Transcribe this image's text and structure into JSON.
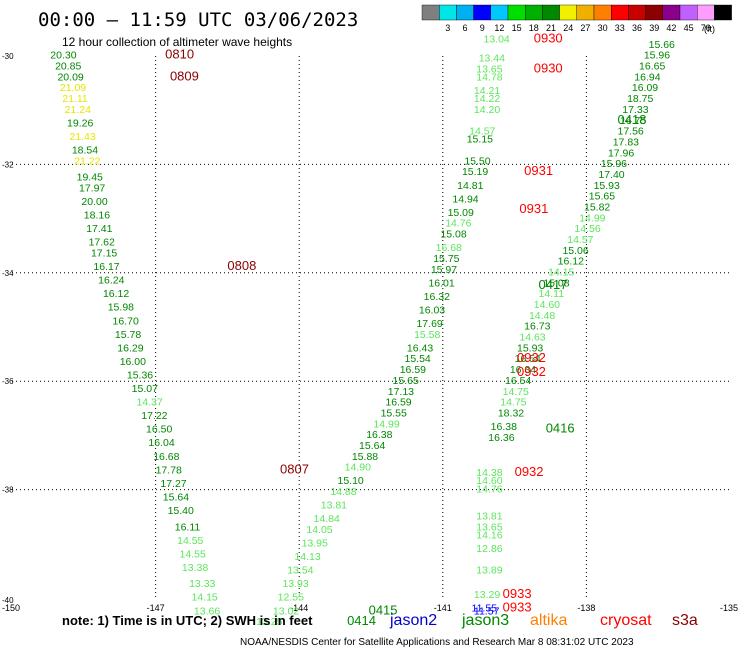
{
  "header": {
    "title": "00:00 – 11:59 UTC 03/06/2023",
    "subtitle": "12 hour collection of altimeter wave heights"
  },
  "colorbar": {
    "colors": [
      "#7f7f7f",
      "#00e5e5",
      "#00b0f0",
      "#0000ff",
      "#00c8ff",
      "#00e000",
      "#00b000",
      "#008800",
      "#f0f000",
      "#f0b000",
      "#ff7f00",
      "#ff0000",
      "#c80000",
      "#8b0000",
      "#8b008b",
      "#c060ff",
      "#ff9cff",
      "#000000"
    ],
    "tick_labels": [
      "3",
      "6",
      "9",
      "12",
      "15",
      "18",
      "21",
      "24",
      "27",
      "30",
      "33",
      "36",
      "39",
      "42",
      "45",
      "70"
    ],
    "unit": "(ft)"
  },
  "note": "note:  1) Time is in UTC;  2) SWH is in feet",
  "satellites": [
    {
      "name": "jason2",
      "color": "#0000cc"
    },
    {
      "name": "jason3",
      "color": "#008800"
    },
    {
      "name": "altika",
      "color": "#ff8000"
    },
    {
      "name": "cryosat",
      "color": "#ff0000"
    },
    {
      "name": "s3a",
      "color": "#8b0000"
    }
  ],
  "footer": "NOAA/NESDIS Center for Satellite Applications and Research   Mar  8 08:31:02 UTC 2023",
  "chart_data": {
    "type": "scatter",
    "xlim": [
      -150,
      -135
    ],
    "ylim": [
      -40,
      -30
    ],
    "x_ticks": [
      "-150",
      "-147",
      "-144",
      "-141",
      "-138",
      "-135"
    ],
    "y_ticks": [
      "-30",
      "-32",
      "-34",
      "-36",
      "-38",
      "-40"
    ],
    "grid": true,
    "labels": [
      {
        "x": -149.2,
        "y": -30.05,
        "text": "20.30",
        "color": "#008800"
      },
      {
        "x": -149.1,
        "y": -30.25,
        "text": "20.85",
        "color": "#008800"
      },
      {
        "x": -149.05,
        "y": -30.45,
        "text": "20.09",
        "color": "#008800"
      },
      {
        "x": -149.0,
        "y": -30.65,
        "text": "21.09",
        "color": "#e6e600"
      },
      {
        "x": -148.95,
        "y": -30.85,
        "text": "21.11",
        "color": "#e6e600"
      },
      {
        "x": -148.9,
        "y": -31.05,
        "text": "21.24",
        "color": "#e6e600"
      },
      {
        "x": -148.85,
        "y": -31.3,
        "text": "19.26",
        "color": "#008800"
      },
      {
        "x": -148.8,
        "y": -31.55,
        "text": "21.43",
        "color": "#e6e600"
      },
      {
        "x": -148.75,
        "y": -31.8,
        "text": "18.54",
        "color": "#008800"
      },
      {
        "x": -148.7,
        "y": -32.0,
        "text": "21.22",
        "color": "#e6e600"
      },
      {
        "x": -148.65,
        "y": -32.3,
        "text": "19.45",
        "color": "#008800"
      },
      {
        "x": -148.6,
        "y": -32.5,
        "text": "17.97",
        "color": "#008800"
      },
      {
        "x": -148.55,
        "y": -32.75,
        "text": "20.00",
        "color": "#008800"
      },
      {
        "x": -148.5,
        "y": -33.0,
        "text": "18.16",
        "color": "#008800"
      },
      {
        "x": -148.45,
        "y": -33.25,
        "text": "17.41",
        "color": "#008800"
      },
      {
        "x": -148.4,
        "y": -33.5,
        "text": "17.62",
        "color": "#008800"
      },
      {
        "x": -148.35,
        "y": -33.7,
        "text": "17.15",
        "color": "#008800"
      },
      {
        "x": -148.3,
        "y": -33.95,
        "text": "16.17",
        "color": "#008800"
      },
      {
        "x": -148.2,
        "y": -34.2,
        "text": "16.24",
        "color": "#008800"
      },
      {
        "x": -148.1,
        "y": -34.45,
        "text": "16.12",
        "color": "#008800"
      },
      {
        "x": -148.0,
        "y": -34.7,
        "text": "15.98",
        "color": "#008800"
      },
      {
        "x": -147.9,
        "y": -34.95,
        "text": "16.70",
        "color": "#008800"
      },
      {
        "x": -147.85,
        "y": -35.2,
        "text": "15.78",
        "color": "#008800"
      },
      {
        "x": -147.8,
        "y": -35.45,
        "text": "16.29",
        "color": "#008800"
      },
      {
        "x": -147.75,
        "y": -35.7,
        "text": "16.00",
        "color": "#008800"
      },
      {
        "x": -147.6,
        "y": -35.95,
        "text": "15.36",
        "color": "#008800"
      },
      {
        "x": -147.5,
        "y": -36.2,
        "text": "15.07",
        "color": "#008800"
      },
      {
        "x": -147.4,
        "y": -36.45,
        "text": "14.37",
        "color": "#5ce65c"
      },
      {
        "x": -147.3,
        "y": -36.7,
        "text": "17.22",
        "color": "#008800"
      },
      {
        "x": -147.2,
        "y": -36.95,
        "text": "16.50",
        "color": "#008800"
      },
      {
        "x": -147.15,
        "y": -37.2,
        "text": "16.04",
        "color": "#008800"
      },
      {
        "x": -147.05,
        "y": -37.45,
        "text": "16.68",
        "color": "#008800"
      },
      {
        "x": -147.0,
        "y": -37.7,
        "text": "17.78",
        "color": "#008800"
      },
      {
        "x": -146.9,
        "y": -37.95,
        "text": "17.27",
        "color": "#008800"
      },
      {
        "x": -146.85,
        "y": -38.2,
        "text": "15.64",
        "color": "#008800"
      },
      {
        "x": -146.75,
        "y": -38.45,
        "text": "15.40",
        "color": "#008800"
      },
      {
        "x": -146.6,
        "y": -38.75,
        "text": "16.11",
        "color": "#008800"
      },
      {
        "x": -146.55,
        "y": -39.0,
        "text": "14.55",
        "color": "#5ce65c"
      },
      {
        "x": -146.5,
        "y": -39.25,
        "text": "14.55",
        "color": "#5ce65c"
      },
      {
        "x": -146.45,
        "y": -39.5,
        "text": "13.38",
        "color": "#5ce65c"
      },
      {
        "x": -146.3,
        "y": -39.8,
        "text": "13.33",
        "color": "#5ce65c"
      },
      {
        "x": -146.25,
        "y": -40.05,
        "text": "14.15",
        "color": "#5ce65c"
      },
      {
        "x": -146.2,
        "y": -40.3,
        "text": "13.66",
        "color": "#5ce65c"
      },
      {
        "x": -144.9,
        "y": -40.5,
        "text": "13.25",
        "color": "#5ce65c"
      },
      {
        "x": -144.55,
        "y": -40.3,
        "text": "13.02",
        "color": "#5ce65c"
      },
      {
        "x": -144.45,
        "y": -40.05,
        "text": "12.55",
        "color": "#5ce65c"
      },
      {
        "x": -144.35,
        "y": -39.8,
        "text": "13.93",
        "color": "#5ce65c"
      },
      {
        "x": -144.25,
        "y": -39.55,
        "text": "13.54",
        "color": "#5ce65c"
      },
      {
        "x": -144.1,
        "y": -39.3,
        "text": "14.13",
        "color": "#5ce65c"
      },
      {
        "x": -143.95,
        "y": -39.05,
        "text": "13.95",
        "color": "#5ce65c"
      },
      {
        "x": -143.85,
        "y": -38.8,
        "text": "14.05",
        "color": "#5ce65c"
      },
      {
        "x": -143.7,
        "y": -38.6,
        "text": "14.84",
        "color": "#5ce65c"
      },
      {
        "x": -143.55,
        "y": -38.35,
        "text": "13.81",
        "color": "#5ce65c"
      },
      {
        "x": -143.35,
        "y": -38.1,
        "text": "14.88",
        "color": "#5ce65c"
      },
      {
        "x": -143.2,
        "y": -37.9,
        "text": "15.10",
        "color": "#008800"
      },
      {
        "x": -143.05,
        "y": -37.65,
        "text": "14.90",
        "color": "#5ce65c"
      },
      {
        "x": -142.9,
        "y": -37.45,
        "text": "15.88",
        "color": "#008800"
      },
      {
        "x": -142.75,
        "y": -37.25,
        "text": "15.64",
        "color": "#008800"
      },
      {
        "x": -142.6,
        "y": -37.05,
        "text": "16.38",
        "color": "#008800"
      },
      {
        "x": -142.45,
        "y": -36.85,
        "text": "14.99",
        "color": "#5ce65c"
      },
      {
        "x": -142.3,
        "y": -36.65,
        "text": "15.55",
        "color": "#008800"
      },
      {
        "x": -142.2,
        "y": -36.45,
        "text": "16.59",
        "color": "#008800"
      },
      {
        "x": -142.15,
        "y": -36.25,
        "text": "17.13",
        "color": "#008800"
      },
      {
        "x": -142.05,
        "y": -36.05,
        "text": "15.65",
        "color": "#008800"
      },
      {
        "x": -141.9,
        "y": -35.85,
        "text": "16.59",
        "color": "#008800"
      },
      {
        "x": -141.8,
        "y": -35.65,
        "text": "15.54",
        "color": "#008800"
      },
      {
        "x": -141.75,
        "y": -35.45,
        "text": "16.43",
        "color": "#008800"
      },
      {
        "x": -141.6,
        "y": -35.2,
        "text": "15.58",
        "color": "#5ce65c"
      },
      {
        "x": -141.55,
        "y": -35.0,
        "text": "17.69",
        "color": "#008800"
      },
      {
        "x": -141.5,
        "y": -34.75,
        "text": "16.03",
        "color": "#008800"
      },
      {
        "x": -141.4,
        "y": -34.5,
        "text": "16.32",
        "color": "#008800"
      },
      {
        "x": -141.3,
        "y": -34.25,
        "text": "16.01",
        "color": "#008800"
      },
      {
        "x": -141.25,
        "y": -34.0,
        "text": "15.97",
        "color": "#008800"
      },
      {
        "x": -141.2,
        "y": -33.8,
        "text": "15.75",
        "color": "#008800"
      },
      {
        "x": -141.15,
        "y": -33.6,
        "text": "16.68",
        "color": "#5ce65c"
      },
      {
        "x": -141.05,
        "y": -33.35,
        "text": "15.08",
        "color": "#008800"
      },
      {
        "x": -140.95,
        "y": -33.15,
        "text": "14.76",
        "color": "#5ce65c"
      },
      {
        "x": -140.9,
        "y": -32.95,
        "text": "15.09",
        "color": "#008800"
      },
      {
        "x": -140.8,
        "y": -32.7,
        "text": "14.94",
        "color": "#008800"
      },
      {
        "x": -140.7,
        "y": -32.45,
        "text": "14.81",
        "color": "#008800"
      },
      {
        "x": -140.6,
        "y": -32.2,
        "text": "15.19",
        "color": "#008800"
      },
      {
        "x": -140.55,
        "y": -32.0,
        "text": "15.50",
        "color": "#008800"
      },
      {
        "x": -140.5,
        "y": -31.6,
        "text": "15.15",
        "color": "#008800"
      },
      {
        "x": -140.45,
        "y": -31.45,
        "text": "14.57",
        "color": "#5ce65c"
      },
      {
        "x": -140.35,
        "y": -31.05,
        "text": "14.20",
        "color": "#5ce65c"
      },
      {
        "x": -140.35,
        "y": -30.85,
        "text": "14.22",
        "color": "#5ce65c"
      },
      {
        "x": -140.35,
        "y": -30.7,
        "text": "14.21",
        "color": "#5ce65c"
      },
      {
        "x": -140.3,
        "y": -30.45,
        "text": "14.78",
        "color": "#5ce65c"
      },
      {
        "x": -140.3,
        "y": -30.3,
        "text": "13.65",
        "color": "#5ce65c"
      },
      {
        "x": -140.25,
        "y": -30.1,
        "text": "13.44",
        "color": "#5ce65c"
      },
      {
        "x": -140.15,
        "y": -29.75,
        "text": "13.04",
        "color": "#5ce65c"
      },
      {
        "x": -136.7,
        "y": -29.85,
        "text": "15.66",
        "color": "#008800"
      },
      {
        "x": -136.8,
        "y": -30.05,
        "text": "15.96",
        "color": "#008800"
      },
      {
        "x": -136.9,
        "y": -30.25,
        "text": "16.65",
        "color": "#008800"
      },
      {
        "x": -137.0,
        "y": -30.45,
        "text": "16.94",
        "color": "#008800"
      },
      {
        "x": -137.05,
        "y": -30.65,
        "text": "16.09",
        "color": "#008800"
      },
      {
        "x": -137.15,
        "y": -30.85,
        "text": "18.75",
        "color": "#008800"
      },
      {
        "x": -137.25,
        "y": -31.05,
        "text": "17.33",
        "color": "#008800"
      },
      {
        "x": -137.3,
        "y": -31.25,
        "text": "16.75",
        "color": "#008800"
      },
      {
        "x": -137.35,
        "y": -31.45,
        "text": "17.56",
        "color": "#008800"
      },
      {
        "x": -137.45,
        "y": -31.65,
        "text": "17.83",
        "color": "#008800"
      },
      {
        "x": -137.55,
        "y": -31.85,
        "text": "17.96",
        "color": "#008800"
      },
      {
        "x": -137.7,
        "y": -32.05,
        "text": "15.96",
        "color": "#008800"
      },
      {
        "x": -137.75,
        "y": -32.25,
        "text": "17.40",
        "color": "#008800"
      },
      {
        "x": -137.85,
        "y": -32.45,
        "text": "15.93",
        "color": "#008800"
      },
      {
        "x": -137.95,
        "y": -32.65,
        "text": "15.65",
        "color": "#008800"
      },
      {
        "x": -138.05,
        "y": -32.85,
        "text": "15.82",
        "color": "#008800"
      },
      {
        "x": -138.15,
        "y": -33.05,
        "text": "14.99",
        "color": "#5ce65c"
      },
      {
        "x": -138.25,
        "y": -33.25,
        "text": "14.56",
        "color": "#5ce65c"
      },
      {
        "x": -138.4,
        "y": -33.45,
        "text": "14.57",
        "color": "#5ce65c"
      },
      {
        "x": -138.5,
        "y": -33.65,
        "text": "15.06",
        "color": "#008800"
      },
      {
        "x": -138.6,
        "y": -33.85,
        "text": "16.12",
        "color": "#008800"
      },
      {
        "x": -138.8,
        "y": -34.05,
        "text": "14.15",
        "color": "#5ce65c"
      },
      {
        "x": -138.9,
        "y": -34.25,
        "text": "15.08",
        "color": "#008800"
      },
      {
        "x": -139.0,
        "y": -34.45,
        "text": "14.11",
        "color": "#5ce65c"
      },
      {
        "x": -139.1,
        "y": -34.65,
        "text": "14.60",
        "color": "#5ce65c"
      },
      {
        "x": -139.2,
        "y": -34.85,
        "text": "14.48",
        "color": "#5ce65c"
      },
      {
        "x": -139.3,
        "y": -35.05,
        "text": "16.73",
        "color": "#008800"
      },
      {
        "x": -139.4,
        "y": -35.25,
        "text": "14.63",
        "color": "#5ce65c"
      },
      {
        "x": -139.45,
        "y": -35.45,
        "text": "15.93",
        "color": "#008800"
      },
      {
        "x": -139.5,
        "y": -35.65,
        "text": "16.54",
        "color": "#008800"
      },
      {
        "x": -139.6,
        "y": -35.85,
        "text": "16.34",
        "color": "#008800"
      },
      {
        "x": -139.7,
        "y": -36.05,
        "text": "16.54",
        "color": "#008800"
      },
      {
        "x": -139.75,
        "y": -36.25,
        "text": "14.75",
        "color": "#5ce65c"
      },
      {
        "x": -139.8,
        "y": -36.45,
        "text": "14.75",
        "color": "#5ce65c"
      },
      {
        "x": -139.85,
        "y": -36.65,
        "text": "18.32",
        "color": "#008800"
      },
      {
        "x": -140.0,
        "y": -36.9,
        "text": "16.38",
        "color": "#008800"
      },
      {
        "x": -140.05,
        "y": -37.1,
        "text": "16.36",
        "color": "#008800"
      },
      {
        "x": -140.3,
        "y": -37.75,
        "text": "14.38",
        "color": "#5ce65c"
      },
      {
        "x": -140.3,
        "y": -37.9,
        "text": "14.60",
        "color": "#5ce65c"
      },
      {
        "x": -140.3,
        "y": -38.05,
        "text": "14.76",
        "color": "#5ce65c"
      },
      {
        "x": -140.3,
        "y": -38.55,
        "text": "13.81",
        "color": "#5ce65c"
      },
      {
        "x": -140.3,
        "y": -38.75,
        "text": "13.65",
        "color": "#5ce65c"
      },
      {
        "x": -140.3,
        "y": -38.9,
        "text": "14.16",
        "color": "#5ce65c"
      },
      {
        "x": -140.3,
        "y": -39.15,
        "text": "12.86",
        "color": "#5ce65c"
      },
      {
        "x": -140.3,
        "y": -39.55,
        "text": "13.89",
        "color": "#5ce65c"
      },
      {
        "x": -140.35,
        "y": -40.0,
        "text": "13.29",
        "color": "#5ce65c"
      },
      {
        "x": -140.4,
        "y": -40.25,
        "text": "11.55",
        "color": "#0000ff"
      },
      {
        "x": -140.35,
        "y": -40.3,
        "text": "11.57",
        "color": "#0000ff"
      }
    ],
    "pass_times": [
      {
        "x": -146.8,
        "y": -30.05,
        "text": "0810",
        "color": "#8b0000"
      },
      {
        "x": -146.7,
        "y": -30.45,
        "text": "0809",
        "color": "#8b0000"
      },
      {
        "x": -145.5,
        "y": -33.95,
        "text": "0808",
        "color": "#8b0000"
      },
      {
        "x": -144.4,
        "y": -37.7,
        "text": "0807",
        "color": "#8b0000"
      },
      {
        "x": -142.55,
        "y": -40.3,
        "text": "0415",
        "color": "#008800"
      },
      {
        "x": -143.0,
        "y": -40.5,
        "text": "0414",
        "color": "#008800"
      },
      {
        "x": -139.0,
        "y": -34.3,
        "text": "0417",
        "color": "#008800"
      },
      {
        "x": -137.35,
        "y": -31.25,
        "text": "0418",
        "color": "#008800"
      },
      {
        "x": -138.85,
        "y": -36.95,
        "text": "0416",
        "color": "#008800"
      },
      {
        "x": -139.1,
        "y": -29.75,
        "text": "0930",
        "color": "#ff0000"
      },
      {
        "x": -139.1,
        "y": -30.3,
        "text": "0930",
        "color": "#ff0000"
      },
      {
        "x": -139.3,
        "y": -32.2,
        "text": "0931",
        "color": "#ff0000"
      },
      {
        "x": -139.4,
        "y": -32.9,
        "text": "0931",
        "color": "#ff0000"
      },
      {
        "x": -139.45,
        "y": -35.65,
        "text": "0932",
        "color": "#ff0000"
      },
      {
        "x": -139.45,
        "y": -35.9,
        "text": "0932",
        "color": "#ff0000"
      },
      {
        "x": -139.5,
        "y": -37.75,
        "text": "0932",
        "color": "#ff0000"
      },
      {
        "x": -139.75,
        "y": -40.0,
        "text": "0933",
        "color": "#ff0000"
      },
      {
        "x": -139.75,
        "y": -40.25,
        "text": "0933",
        "color": "#ff0000"
      }
    ]
  }
}
